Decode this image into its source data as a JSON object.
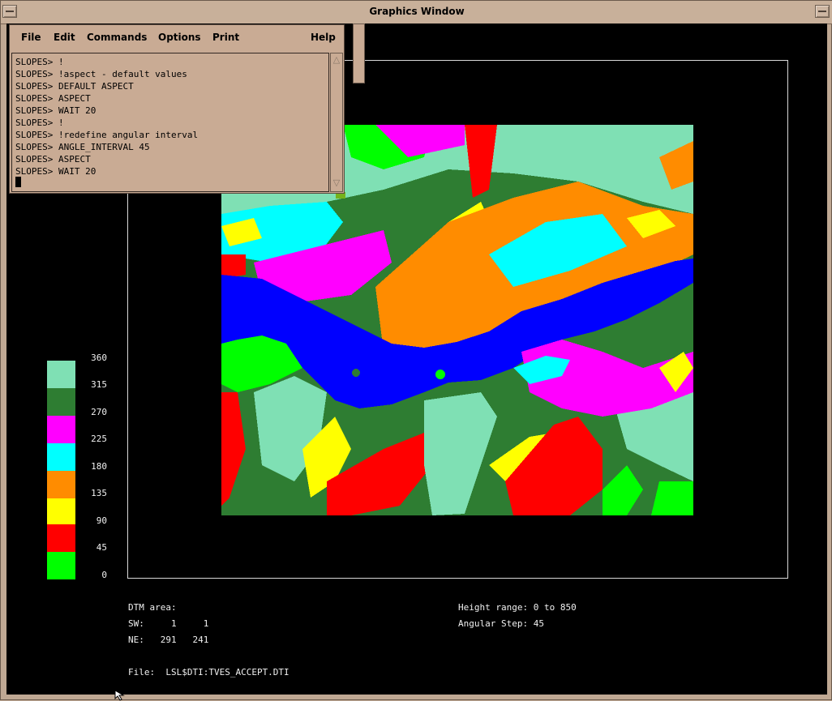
{
  "window": {
    "title": "Graphics Window"
  },
  "menubar": {
    "file": "File",
    "edit": "Edit",
    "commands": "Commands",
    "options": "Options",
    "print": "Print",
    "help": "Help"
  },
  "console": {
    "lines": [
      "SLOPES> !",
      "SLOPES> !aspect - default values",
      "SLOPES> DEFAULT ASPECT",
      "SLOPES> ASPECT",
      "SLOPES> WAIT 20",
      "SLOPES> !",
      "SLOPES> !redefine angular interval",
      "SLOPES> ANGLE_INTERVAL 45",
      "SLOPES> ASPECT",
      "SLOPES> WAIT 20"
    ]
  },
  "legend": {
    "labels": [
      "360",
      "315",
      "270",
      "225",
      "180",
      "135",
      "90",
      "45",
      "0"
    ],
    "colors": [
      "#7fe0b4",
      "#2e7d32",
      "#ff00ff",
      "#00ffff",
      "#ff8c00",
      "#ffff00",
      "#ff0000",
      "#00ff00"
    ]
  },
  "water_color": "#0000ff",
  "info": {
    "dtm_area": "DTM area:",
    "sw": "SW:     1     1",
    "ne": "NE:   291   241",
    "file": "File:  LSL$DTI:TVES_ACCEPT.DTI",
    "height_range": "Height range: 0 to 850",
    "angular_step": "Angular Step: 45"
  }
}
